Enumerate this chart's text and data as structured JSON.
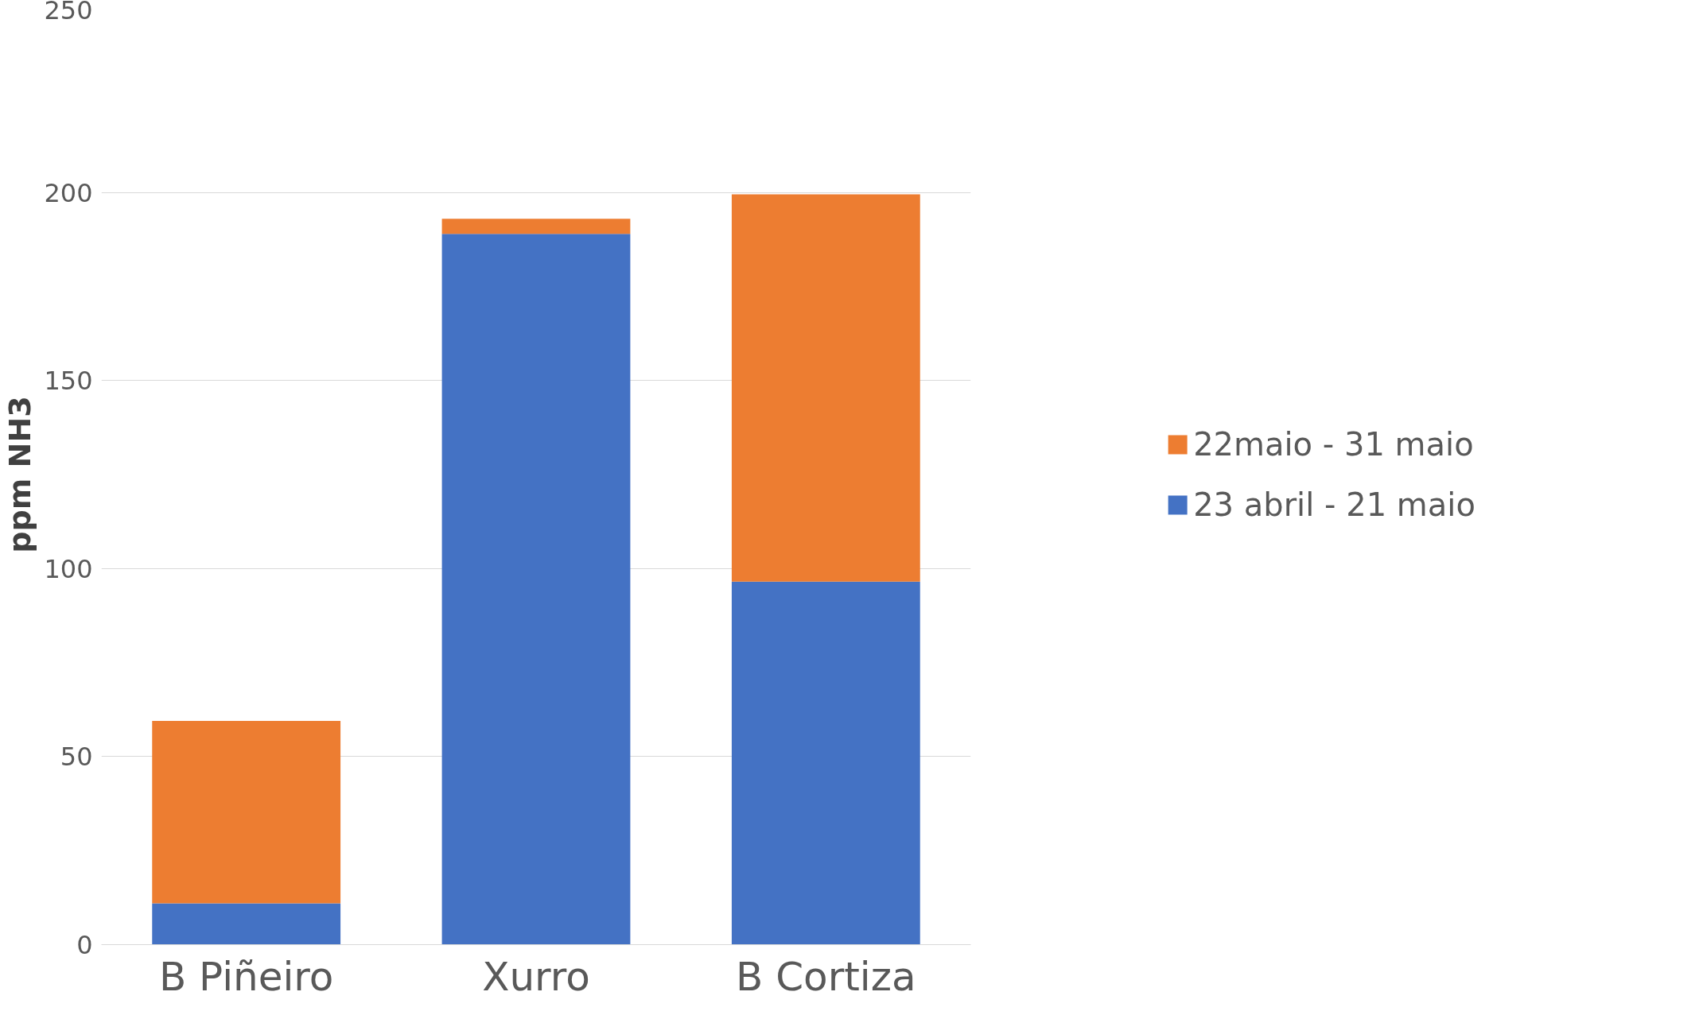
{
  "chart_data": {
    "type": "bar",
    "stacked": true,
    "ylabel": "ppm NH3",
    "categories": [
      "B Piñeiro",
      "Xurro",
      "B Cortiza"
    ],
    "series": [
      {
        "name": "23 abril - 21 maio",
        "color": "#4472c4",
        "values": [
          11,
          189,
          96.5
        ]
      },
      {
        "name": "22maio - 31 maio",
        "color": "#ed7d31",
        "values": [
          48.5,
          4,
          103
        ]
      }
    ],
    "ylim": [
      0,
      250
    ],
    "yticks": [
      0,
      50,
      100,
      150,
      200,
      250
    ],
    "grid": "y",
    "legend": "right"
  }
}
